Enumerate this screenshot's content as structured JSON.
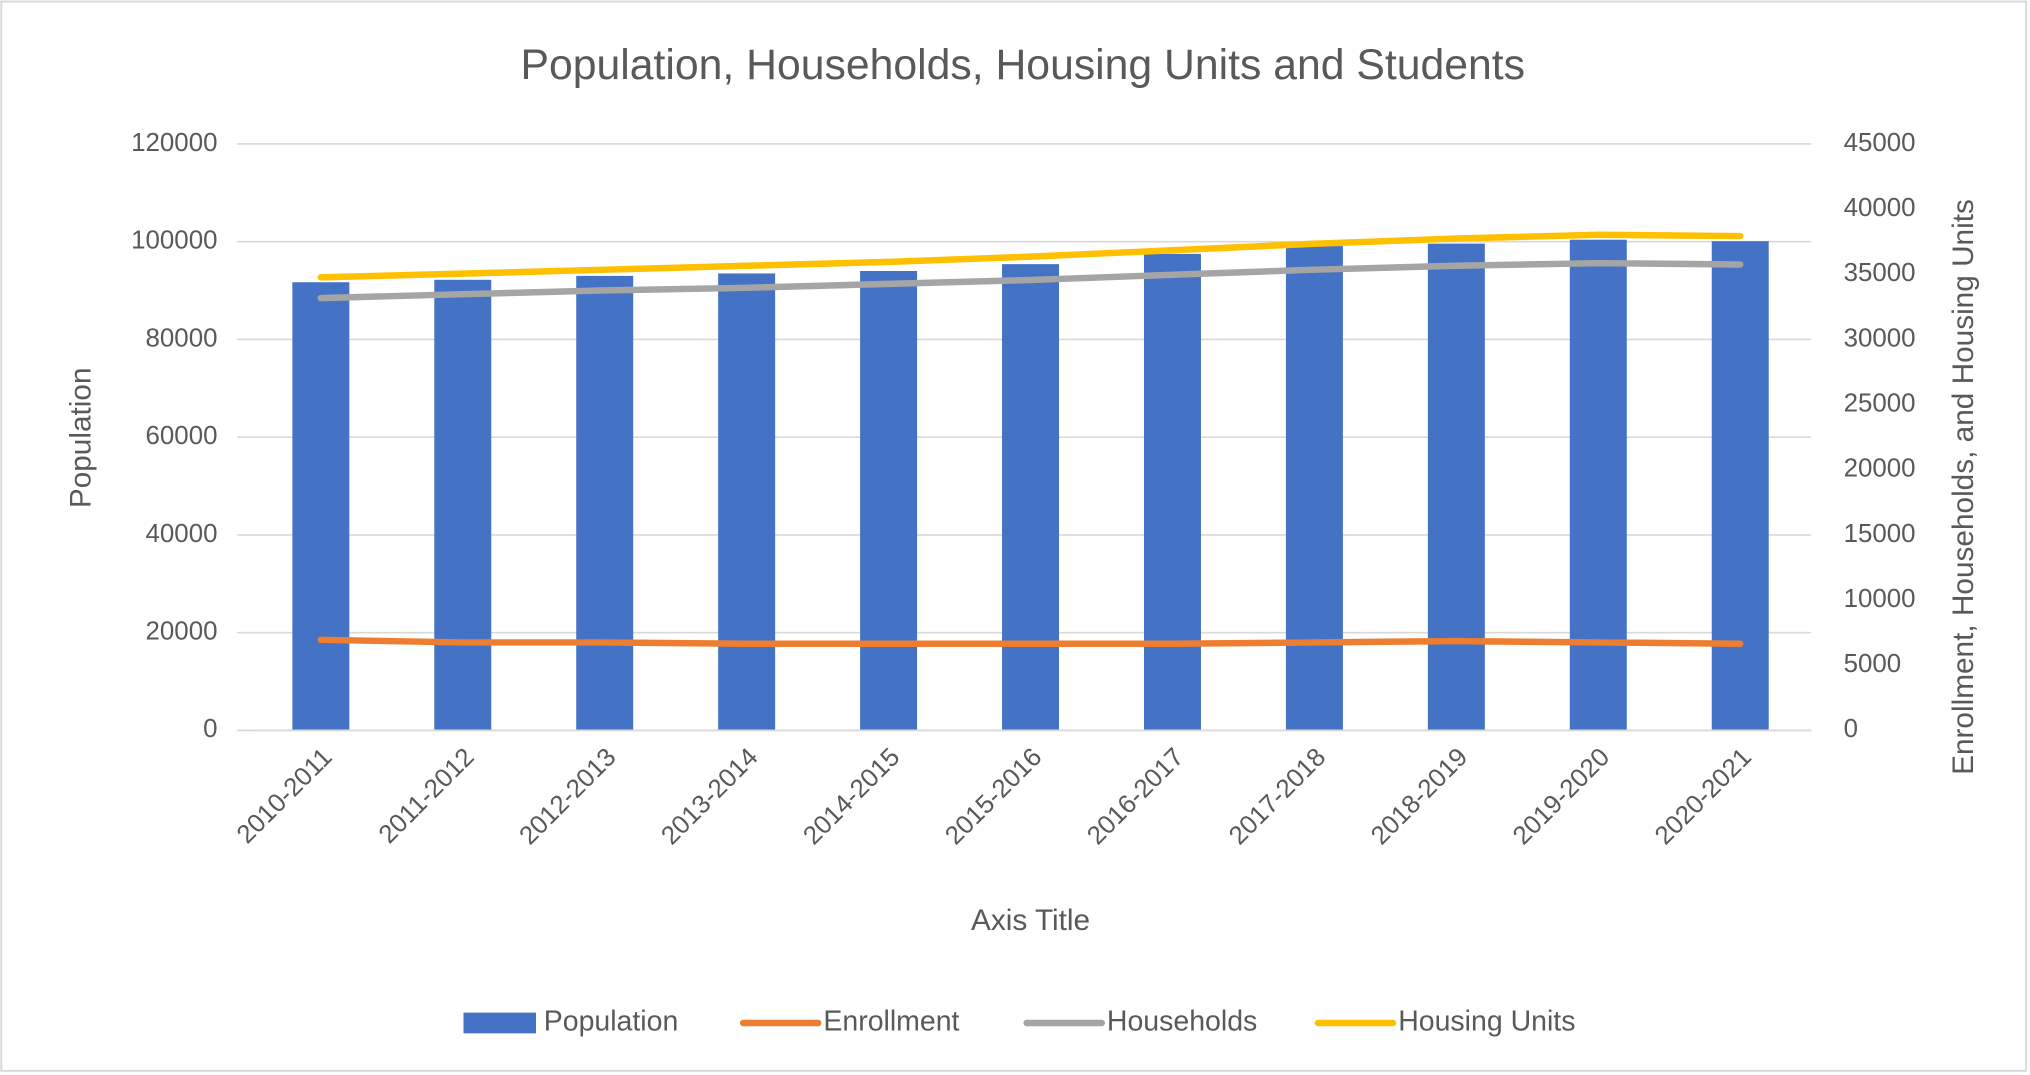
{
  "chart_data": {
    "type": "bar",
    "title": "Population, Households, Housing Units and Students",
    "x_label": "Axis Title",
    "y_label": "Population",
    "y2_label": "Enrollment, Households, and Housing Units",
    "categories": [
      "2010-2011",
      "2011-2012",
      "2012-2013",
      "2013-2014",
      "2014-2015",
      "2015-2016",
      "2016-2017",
      "2017-2018",
      "2018-2019",
      "2019-2020",
      "2020-2021"
    ],
    "series": [
      {
        "name": "Population",
        "type": "bar",
        "color": "#4472c4",
        "values": [
          91700,
          92200,
          93000,
          93500,
          94000,
          95400,
          97500,
          99100,
          99600,
          100400,
          100100
        ]
      },
      {
        "name": "Enrollment",
        "type": "line",
        "axis": "y2",
        "color": "#ed7d31",
        "values": [
          6950,
          6750,
          6750,
          6650,
          6650,
          6650,
          6650,
          6750,
          6850,
          6750,
          6650
        ]
      },
      {
        "name": "Households",
        "type": "line",
        "axis": "y2",
        "color": "#a5a5a5",
        "values": [
          33170,
          33470,
          33760,
          33960,
          34260,
          34560,
          34960,
          35350,
          35650,
          35850,
          35750
        ]
      },
      {
        "name": "Housing Units",
        "type": "line",
        "axis": "y2",
        "color": "#ffc000",
        "values": [
          34760,
          35050,
          35350,
          35650,
          35950,
          36350,
          36840,
          37340,
          37740,
          38030,
          37930
        ]
      }
    ],
    "ylim": [
      0,
      120000
    ],
    "yticks": [
      0,
      20000,
      40000,
      60000,
      80000,
      100000,
      120000
    ],
    "y2lim": [
      0,
      45000
    ],
    "y2ticks": [
      0,
      5000,
      10000,
      15000,
      20000,
      25000,
      30000,
      35000,
      40000,
      45000
    ],
    "grid": true,
    "legend": "bottom"
  }
}
